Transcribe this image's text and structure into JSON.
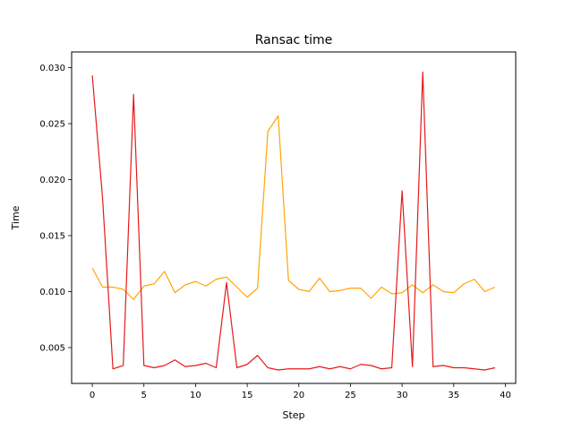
{
  "chart_data": {
    "type": "line",
    "title": "Ransac time",
    "xlabel": "Step",
    "ylabel": "Time",
    "xlim": [
      -2.0,
      41.0
    ],
    "ylim": [
      0.0018,
      0.0314
    ],
    "xticks": [
      0,
      5,
      10,
      15,
      20,
      25,
      30,
      35,
      40
    ],
    "xtick_labels": [
      "0",
      "5",
      "10",
      "15",
      "20",
      "25",
      "30",
      "35",
      "40"
    ],
    "yticks": [
      0.005,
      0.01,
      0.015,
      0.02,
      0.025,
      0.03
    ],
    "ytick_labels": [
      "0.005",
      "0.010",
      "0.015",
      "0.020",
      "0.025",
      "0.030"
    ],
    "grid": false,
    "legend": null,
    "x": [
      0,
      1,
      2,
      3,
      4,
      5,
      6,
      7,
      8,
      9,
      10,
      11,
      12,
      13,
      14,
      15,
      16,
      17,
      18,
      19,
      20,
      21,
      22,
      23,
      24,
      25,
      26,
      27,
      28,
      29,
      30,
      31,
      32,
      33,
      34,
      35,
      36,
      37,
      38,
      39
    ],
    "series": [
      {
        "color": "#ffa500",
        "values": [
          0.0121,
          0.0104,
          0.0104,
          0.0102,
          0.0093,
          0.0105,
          0.0107,
          0.0118,
          0.0099,
          0.0106,
          0.0109,
          0.0105,
          0.0111,
          0.0113,
          0.0104,
          0.0095,
          0.0103,
          0.0243,
          0.0257,
          0.011,
          0.0102,
          0.01,
          0.0112,
          0.01,
          0.0101,
          0.0103,
          0.0103,
          0.0094,
          0.0104,
          0.0098,
          0.0099,
          0.0106,
          0.0099,
          0.0106,
          0.01,
          0.0099,
          0.0107,
          0.0111,
          0.01,
          0.0104
        ]
      },
      {
        "color": "#e41a1c",
        "values": [
          0.0293,
          0.0183,
          0.0031,
          0.0034,
          0.0276,
          0.0034,
          0.0032,
          0.0034,
          0.0039,
          0.0033,
          0.0034,
          0.0036,
          0.0032,
          0.0108,
          0.0032,
          0.0035,
          0.0043,
          0.0032,
          0.003,
          0.0031,
          0.0031,
          0.0031,
          0.0033,
          0.0031,
          0.0033,
          0.0031,
          0.0035,
          0.0034,
          0.0031,
          0.0032,
          0.019,
          0.0033,
          0.0296,
          0.0033,
          0.0034,
          0.0032,
          0.0032,
          0.0031,
          0.003,
          0.0032
        ]
      }
    ]
  }
}
